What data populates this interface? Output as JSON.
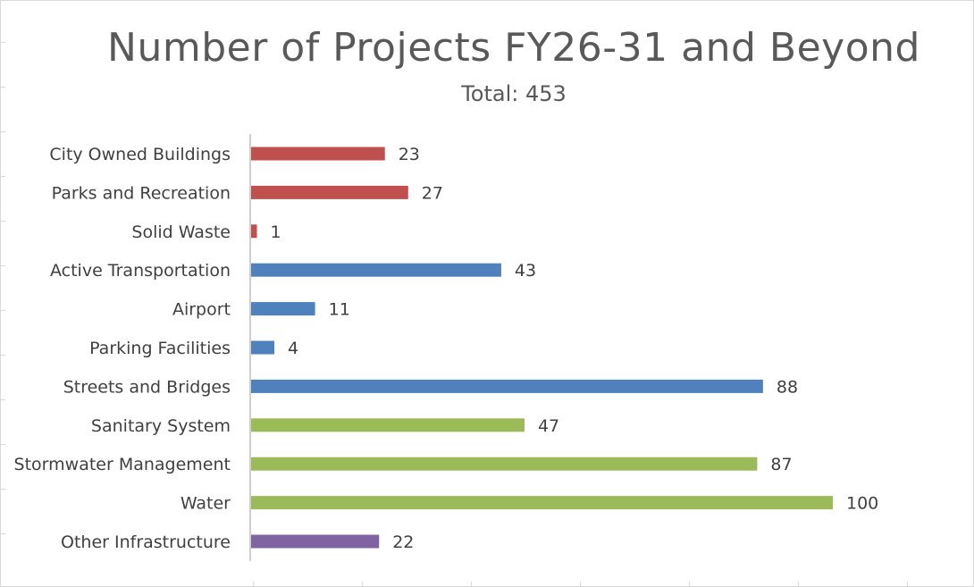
{
  "chart_data": {
    "type": "bar",
    "orientation": "horizontal",
    "title": "Number of Projects FY26-31 and Beyond",
    "subtitle": "Total: 453",
    "categories": [
      "City Owned Buildings",
      "Parks and Recreation",
      "Solid Waste",
      "Active Transportation",
      "Airport",
      "Parking Facilities",
      "Streets and Bridges",
      "Sanitary System",
      "Stormwater Management",
      "Water",
      "Other Infrastructure"
    ],
    "values": [
      23,
      27,
      1,
      43,
      11,
      4,
      88,
      47,
      87,
      100,
      22
    ],
    "bar_colors": [
      "#c0504d",
      "#c0504d",
      "#c0504d",
      "#4f81bd",
      "#4f81bd",
      "#4f81bd",
      "#4f81bd",
      "#9bbb59",
      "#9bbb59",
      "#9bbb59",
      "#8064a2"
    ],
    "xlim": [
      0,
      100
    ],
    "grid": false,
    "legend": "none",
    "data_labels": true
  }
}
